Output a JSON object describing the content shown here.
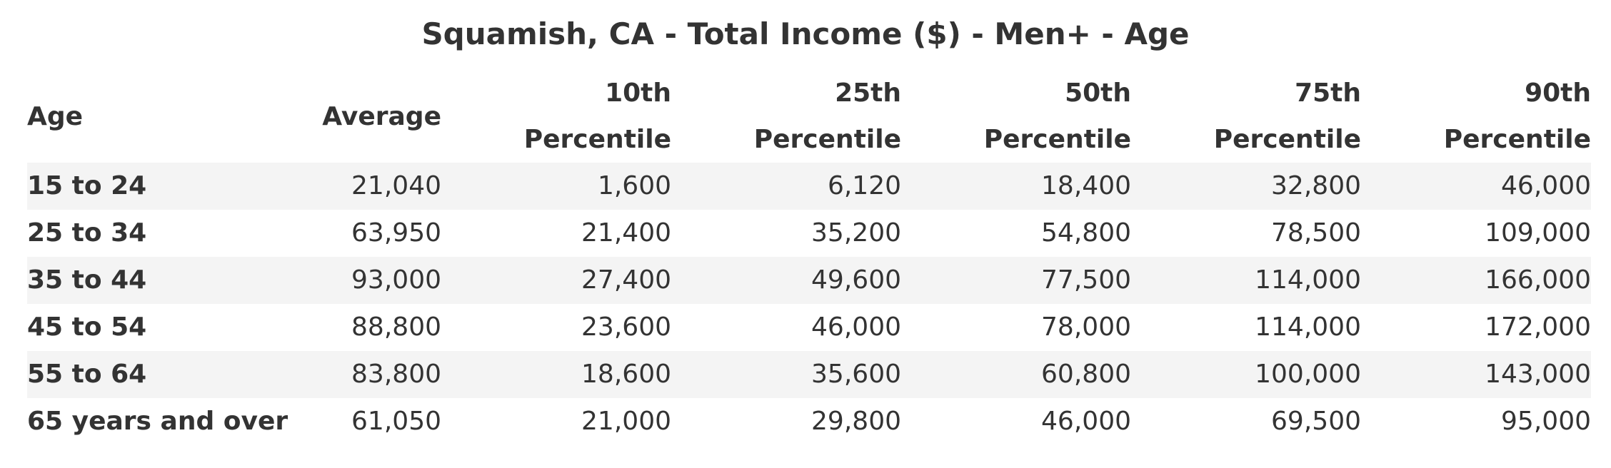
{
  "chart_data": {
    "type": "table",
    "title": "Squamish, CA - Total Income ($) - Men+ - Age",
    "columns": [
      {
        "key": "age",
        "line1": "Age",
        "line2": ""
      },
      {
        "key": "average",
        "line1": "Average",
        "line2": ""
      },
      {
        "key": "p10",
        "line1": "10th",
        "line2": "Percentile"
      },
      {
        "key": "p25",
        "line1": "25th",
        "line2": "Percentile"
      },
      {
        "key": "p50",
        "line1": "50th",
        "line2": "Percentile"
      },
      {
        "key": "p75",
        "line1": "75th",
        "line2": "Percentile"
      },
      {
        "key": "p90",
        "line1": "90th",
        "line2": "Percentile"
      }
    ],
    "rows": [
      {
        "age": "15 to 24",
        "average": "21,040",
        "p10": "1,600",
        "p25": "6,120",
        "p50": "18,400",
        "p75": "32,800",
        "p90": "46,000"
      },
      {
        "age": "25 to 34",
        "average": "63,950",
        "p10": "21,400",
        "p25": "35,200",
        "p50": "54,800",
        "p75": "78,500",
        "p90": "109,000"
      },
      {
        "age": "35 to 44",
        "average": "93,000",
        "p10": "27,400",
        "p25": "49,600",
        "p50": "77,500",
        "p75": "114,000",
        "p90": "166,000"
      },
      {
        "age": "45 to 54",
        "average": "88,800",
        "p10": "23,600",
        "p25": "46,000",
        "p50": "78,000",
        "p75": "114,000",
        "p90": "172,000"
      },
      {
        "age": "55 to 64",
        "average": "83,800",
        "p10": "18,600",
        "p25": "35,600",
        "p50": "60,800",
        "p75": "100,000",
        "p90": "143,000"
      },
      {
        "age": "65 years and over",
        "average": "61,050",
        "p10": "21,000",
        "p25": "29,800",
        "p50": "46,000",
        "p75": "69,500",
        "p90": "95,000"
      }
    ]
  }
}
